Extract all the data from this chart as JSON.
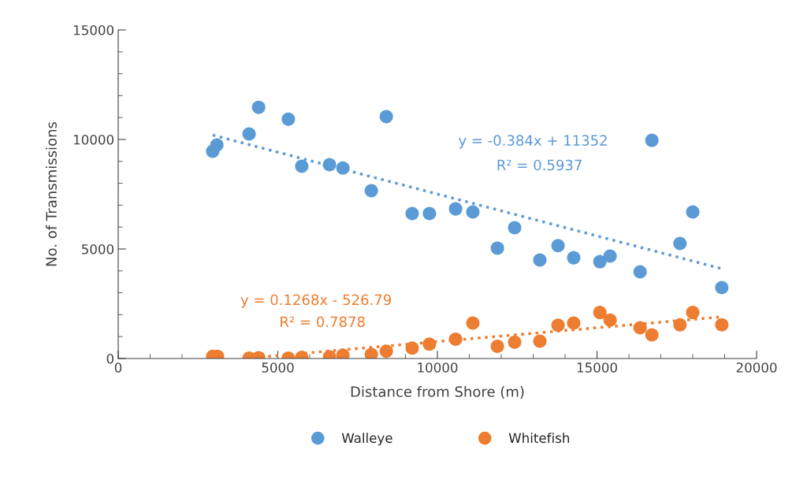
{
  "chart_data": {
    "type": "scatter",
    "xlabel": "Distance from Shore (m)",
    "ylabel": "No. of Transmissions",
    "xlim": [
      0,
      20000
    ],
    "xticks": [
      0,
      5000,
      10000,
      15000,
      20000
    ],
    "ylim": [
      0,
      15000
    ],
    "yticks": [
      0,
      5000,
      10000,
      15000
    ],
    "grid": false,
    "legend": "bottom",
    "series": [
      {
        "name": "Walleye",
        "color": "#5b9bd5",
        "marker": "circle",
        "x": [
          2960,
          3090,
          4100,
          4400,
          5330,
          5750,
          6620,
          7040,
          7930,
          8400,
          9210,
          9750,
          10570,
          11110,
          11880,
          12420,
          13210,
          13780,
          14270,
          15090,
          15410,
          16350,
          16720,
          17600,
          18000,
          18910
        ],
        "values": [
          9460,
          9750,
          10250,
          11470,
          10930,
          8780,
          8850,
          8700,
          7660,
          11040,
          6620,
          6620,
          6830,
          6690,
          5040,
          5970,
          4500,
          5150,
          4600,
          4420,
          4680,
          3960,
          9960,
          5250,
          6690,
          3240
        ]
      },
      {
        "name": "Whitefish",
        "color": "#ed7d31",
        "marker": "circle",
        "x": [
          2960,
          3110,
          4100,
          4400,
          5330,
          5750,
          6620,
          7040,
          7930,
          8400,
          9210,
          9750,
          10570,
          11110,
          11880,
          12420,
          13210,
          13780,
          14270,
          15090,
          15410,
          16350,
          16720,
          17600,
          18000,
          18910
        ],
        "values": [
          100,
          100,
          20,
          40,
          20,
          50,
          80,
          150,
          190,
          330,
          480,
          660,
          880,
          1620,
          560,
          750,
          790,
          1520,
          1620,
          2100,
          1750,
          1400,
          1080,
          1540,
          2100,
          1540
        ]
      },
      {
        "color": "#5b9bd5",
        "type": "line",
        "marker": "none",
        "line_style": "dotted",
        "x": [
          2960,
          18910
        ],
        "values": [
          10200,
          4100
        ]
      },
      {
        "color": "#ed7d31",
        "type": "line",
        "marker": "none",
        "line_style": "dotted",
        "x": [
          4700,
          18910
        ],
        "values": [
          100,
          1900
        ]
      }
    ],
    "annotations": [
      "y = -0.384x + 11352",
      "R² = 0.5937",
      "y = 0.1268x - 526.79",
      "R² = 0.7878"
    ]
  }
}
